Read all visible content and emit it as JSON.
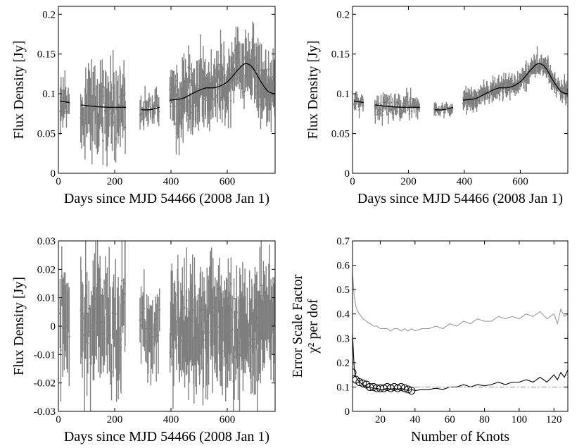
{
  "chart_data": [
    {
      "type": "scatter",
      "subtype": "light-curve with error bars and spline fit",
      "xlabel": "Days since MJD 54466 (2008 Jan 1)",
      "ylabel": "Flux Density [Jy]",
      "xlim": [
        0,
        770
      ],
      "ylim": [
        0,
        0.21
      ],
      "xticks": [
        0,
        200,
        400,
        600
      ],
      "yticks": [
        0,
        0.05,
        0.1,
        0.15,
        0.2
      ],
      "xtick_labels": [
        "0",
        "200",
        "400",
        "600"
      ],
      "ytick_labels": [
        "0",
        "0.05",
        "0.1",
        "0.15",
        "0.2"
      ],
      "fit": {
        "color": "#000000",
        "segments": [
          [
            [
              5,
              0.091
            ],
            [
              40,
              0.089
            ]
          ],
          [
            [
              80,
              0.086
            ],
            [
              130,
              0.084
            ],
            [
              180,
              0.083
            ],
            [
              240,
              0.083
            ]
          ],
          [
            [
              295,
              0.08
            ],
            [
              325,
              0.08
            ],
            [
              360,
              0.083
            ]
          ],
          [
            [
              395,
              0.092
            ],
            [
              440,
              0.094
            ],
            [
              480,
              0.101
            ],
            [
              520,
              0.107
            ],
            [
              560,
              0.108
            ],
            [
              600,
              0.115
            ],
            [
              640,
              0.131
            ],
            [
              665,
              0.138
            ],
            [
              690,
              0.133
            ],
            [
              720,
              0.115
            ],
            [
              745,
              0.103
            ],
            [
              770,
              0.1
            ]
          ]
        ]
      },
      "data_segments": [
        {
          "x_range": [
            5,
            40
          ],
          "n": 12,
          "baseline": 0.089,
          "amp_scale": 0.03
        },
        {
          "x_range": [
            78,
            240
          ],
          "n": 55,
          "baseline": 0.083,
          "amp_scale": 0.05
        },
        {
          "x_range": [
            290,
            360
          ],
          "n": 22,
          "baseline": 0.081,
          "amp_scale": 0.02
        },
        {
          "x_range": [
            395,
            770
          ],
          "n": 170,
          "baseline": "fit",
          "amp_scale": 0.04
        }
      ],
      "series_color": "#7f7f7f"
    },
    {
      "type": "scatter",
      "subtype": "light-curve with error bars and spline fit",
      "xlabel": "Days since MJD 54466 (2008 Jan 1)",
      "ylabel": "Flux Density [Jy]",
      "xlim": [
        0,
        770
      ],
      "ylim": [
        0,
        0.21
      ],
      "xticks": [
        0,
        200,
        400,
        600
      ],
      "yticks": [
        0,
        0.05,
        0.1,
        0.15,
        0.2
      ],
      "xtick_labels": [
        "0",
        "200",
        "400",
        "600"
      ],
      "ytick_labels": [
        "0",
        "0.05",
        "0.1",
        "0.15",
        "0.2"
      ],
      "fit": {
        "color": "#000000",
        "segments": [
          [
            [
              5,
              0.091
            ],
            [
              40,
              0.089
            ]
          ],
          [
            [
              80,
              0.086
            ],
            [
              130,
              0.084
            ],
            [
              180,
              0.083
            ],
            [
              240,
              0.083
            ]
          ],
          [
            [
              295,
              0.08
            ],
            [
              325,
              0.08
            ],
            [
              360,
              0.083
            ]
          ],
          [
            [
              395,
              0.092
            ],
            [
              440,
              0.094
            ],
            [
              480,
              0.101
            ],
            [
              520,
              0.107
            ],
            [
              560,
              0.108
            ],
            [
              600,
              0.115
            ],
            [
              640,
              0.131
            ],
            [
              665,
              0.138
            ],
            [
              690,
              0.133
            ],
            [
              720,
              0.115
            ],
            [
              745,
              0.103
            ],
            [
              770,
              0.1
            ]
          ]
        ]
      },
      "data_segments": [
        {
          "x_range": [
            5,
            40
          ],
          "n": 12,
          "baseline": 0.089,
          "amp_scale": 0.012
        },
        {
          "x_range": [
            78,
            240
          ],
          "n": 55,
          "baseline": 0.083,
          "amp_scale": 0.014
        },
        {
          "x_range": [
            290,
            360
          ],
          "n": 22,
          "baseline": 0.081,
          "amp_scale": 0.008
        },
        {
          "x_range": [
            395,
            770
          ],
          "n": 170,
          "baseline": "fit",
          "amp_scale": 0.013
        }
      ],
      "series_color": "#7f7f7f"
    },
    {
      "type": "scatter",
      "subtype": "residuals with error bars",
      "xlabel": "Days since MJD 54466 (2008 Jan 1)",
      "ylabel": "Flux Density [Jy]",
      "xlim": [
        0,
        770
      ],
      "ylim": [
        -0.03,
        0.03
      ],
      "xticks": [
        0,
        200,
        400,
        600
      ],
      "yticks": [
        -0.03,
        -0.02,
        -0.01,
        0,
        0.01,
        0.02,
        0.03
      ],
      "xtick_labels": [
        "0",
        "200",
        "400",
        "600"
      ],
      "ytick_labels": [
        "-0.03",
        "-0.02",
        "-0.01",
        "0",
        "0.01",
        "0.02",
        "0.03"
      ],
      "data_segments": [
        {
          "x_range": [
            5,
            40
          ],
          "n": 12,
          "baseline": 0,
          "amp_scale": 0.018
        },
        {
          "x_range": [
            78,
            240
          ],
          "n": 55,
          "baseline": 0,
          "amp_scale": 0.022
        },
        {
          "x_range": [
            290,
            360
          ],
          "n": 22,
          "baseline": 0,
          "amp_scale": 0.014
        },
        {
          "x_range": [
            395,
            770
          ],
          "n": 170,
          "baseline": 0,
          "amp_scale": 0.02
        }
      ],
      "series_color": "#7f7f7f"
    },
    {
      "type": "line",
      "xlabel": "Number of Knots",
      "ylabel_lines": [
        "Error Scale Factor",
        "χ² per dof"
      ],
      "xlim": [
        4,
        128
      ],
      "ylim": [
        0,
        0.7
      ],
      "xticks": [
        20,
        40,
        60,
        80,
        100,
        120
      ],
      "yticks": [
        0,
        0.1,
        0.2,
        0.3,
        0.4,
        0.5,
        0.6,
        0.7
      ],
      "xtick_labels": [
        "20",
        "40",
        "60",
        "80",
        "100",
        "120"
      ],
      "ytick_labels": [
        "0",
        "0.1",
        "0.2",
        "0.3",
        "0.4",
        "0.5",
        "0.6",
        "0.7"
      ],
      "series": [
        {
          "name": "chi2 per dof",
          "color": "#999999",
          "x": [
            4,
            5,
            6,
            7,
            8,
            10,
            12,
            14,
            16,
            18,
            20,
            22,
            24,
            26,
            28,
            30,
            32,
            34,
            36,
            38,
            40,
            44,
            48,
            52,
            56,
            60,
            64,
            68,
            72,
            76,
            80,
            84,
            88,
            92,
            96,
            100,
            104,
            108,
            112,
            116,
            120,
            122,
            124,
            126,
            128
          ],
          "y": [
            0.57,
            0.47,
            0.43,
            0.41,
            0.4,
            0.38,
            0.37,
            0.36,
            0.35,
            0.35,
            0.34,
            0.34,
            0.34,
            0.33,
            0.34,
            0.34,
            0.33,
            0.34,
            0.33,
            0.34,
            0.33,
            0.34,
            0.34,
            0.35,
            0.34,
            0.36,
            0.35,
            0.37,
            0.36,
            0.38,
            0.37,
            0.37,
            0.39,
            0.38,
            0.39,
            0.38,
            0.4,
            0.39,
            0.41,
            0.38,
            0.4,
            0.36,
            0.42,
            0.39,
            0.4
          ]
        },
        {
          "name": "error scale factor",
          "color": "#000000",
          "x": [
            4,
            5,
            6,
            7,
            8,
            10,
            12,
            14,
            16,
            18,
            20,
            22,
            24,
            26,
            28,
            30,
            32,
            34,
            36,
            38,
            40,
            44,
            48,
            52,
            56,
            60,
            64,
            68,
            72,
            76,
            80,
            84,
            88,
            92,
            96,
            100,
            104,
            108,
            112,
            116,
            120,
            122,
            124,
            126,
            128
          ],
          "y": [
            0.32,
            0.17,
            0.14,
            0.13,
            0.12,
            0.11,
            0.1,
            0.1,
            0.095,
            0.095,
            0.09,
            0.09,
            0.095,
            0.09,
            0.095,
            0.09,
            0.095,
            0.09,
            0.085,
            0.09,
            0.085,
            0.09,
            0.09,
            0.095,
            0.09,
            0.1,
            0.1,
            0.11,
            0.1,
            0.11,
            0.105,
            0.11,
            0.12,
            0.11,
            0.12,
            0.12,
            0.13,
            0.12,
            0.14,
            0.12,
            0.15,
            0.13,
            0.16,
            0.14,
            0.17
          ]
        },
        {
          "name": "reference level",
          "color": "#999999",
          "style": "dash-dot",
          "x": [
            40,
            128
          ],
          "y": [
            0.1,
            0.1
          ]
        },
        {
          "name": "selected knots",
          "marker": "open-circle",
          "color": "#000000",
          "x": [
            4,
            6,
            8,
            10,
            12,
            14,
            16,
            18,
            20,
            22,
            24,
            26,
            28,
            30,
            32,
            34,
            36,
            38
          ],
          "y": [
            0.16,
            0.13,
            0.12,
            0.115,
            0.11,
            0.1,
            0.1,
            0.095,
            0.095,
            0.095,
            0.1,
            0.095,
            0.1,
            0.095,
            0.1,
            0.095,
            0.09,
            0.085
          ]
        }
      ]
    }
  ]
}
